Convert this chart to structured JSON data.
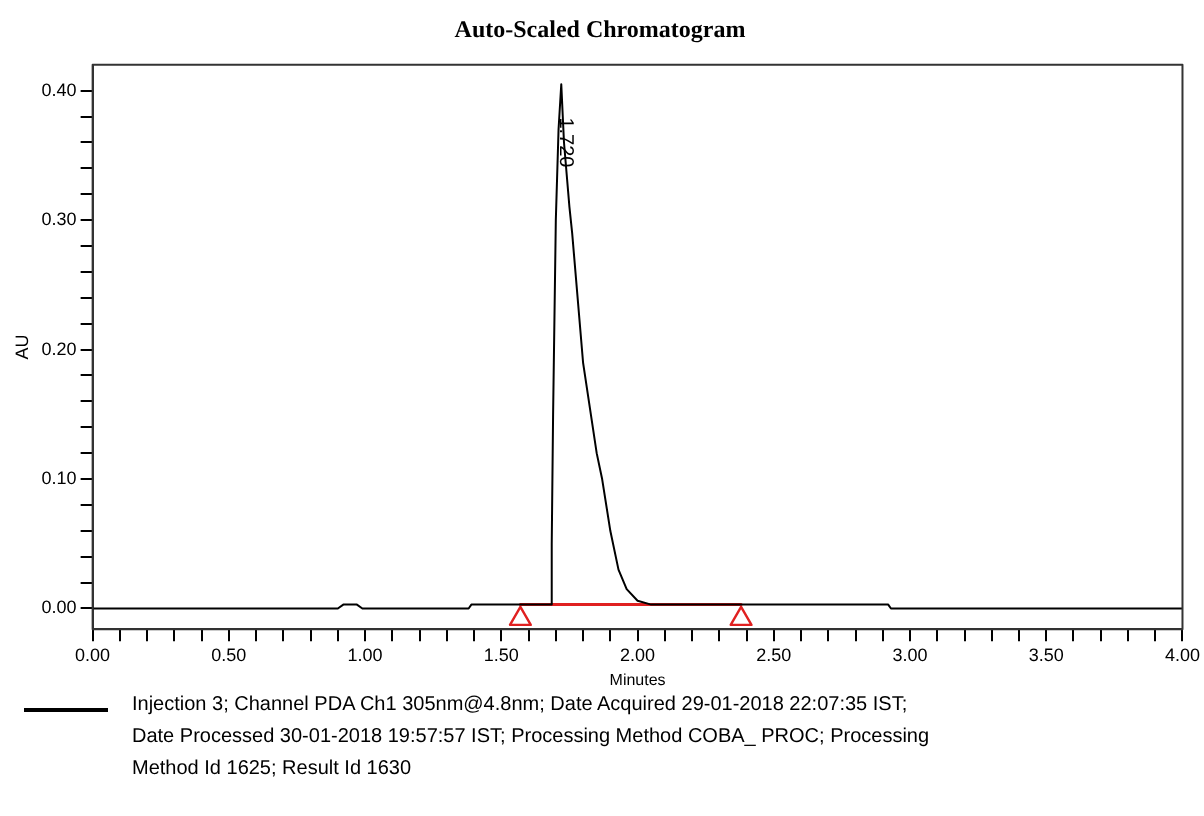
{
  "chart_data": {
    "type": "line",
    "title": "Auto-Scaled Chromatogram",
    "xlabel": "Minutes",
    "ylabel": "AU",
    "xlim": [
      0,
      4
    ],
    "ylim": [
      -0.016,
      0.42
    ],
    "xticks": [
      {
        "value": 0,
        "label": "0.00"
      },
      {
        "value": 0.1,
        "label": null
      },
      {
        "value": 0.2,
        "label": null
      },
      {
        "value": 0.3,
        "label": null
      },
      {
        "value": 0.4,
        "label": null
      },
      {
        "value": 0.5,
        "label": "0.50"
      },
      {
        "value": 0.6,
        "label": null
      },
      {
        "value": 0.7,
        "label": null
      },
      {
        "value": 0.8,
        "label": null
      },
      {
        "value": 0.9,
        "label": null
      },
      {
        "value": 1,
        "label": "1.00"
      },
      {
        "value": 1.1,
        "label": null
      },
      {
        "value": 1.2,
        "label": null
      },
      {
        "value": 1.3,
        "label": null
      },
      {
        "value": 1.4,
        "label": null
      },
      {
        "value": 1.5,
        "label": "1.50"
      },
      {
        "value": 1.6,
        "label": null
      },
      {
        "value": 1.7,
        "label": null
      },
      {
        "value": 1.8,
        "label": null
      },
      {
        "value": 1.9,
        "label": null
      },
      {
        "value": 2,
        "label": "2.00"
      },
      {
        "value": 2.1,
        "label": null
      },
      {
        "value": 2.2,
        "label": null
      },
      {
        "value": 2.3,
        "label": null
      },
      {
        "value": 2.4,
        "label": null
      },
      {
        "value": 2.5,
        "label": "2.50"
      },
      {
        "value": 2.6,
        "label": null
      },
      {
        "value": 2.7,
        "label": null
      },
      {
        "value": 2.8,
        "label": null
      },
      {
        "value": 2.9,
        "label": null
      },
      {
        "value": 3,
        "label": "3.00"
      },
      {
        "value": 3.1,
        "label": null
      },
      {
        "value": 3.2,
        "label": null
      },
      {
        "value": 3.3,
        "label": null
      },
      {
        "value": 3.4,
        "label": null
      },
      {
        "value": 3.5,
        "label": "3.50"
      },
      {
        "value": 3.6,
        "label": null
      },
      {
        "value": 3.7,
        "label": null
      },
      {
        "value": 3.8,
        "label": null
      },
      {
        "value": 3.9,
        "label": null
      },
      {
        "value": 4,
        "label": "4.00"
      }
    ],
    "yticks": [
      {
        "value": 0,
        "label": "0.00"
      },
      {
        "value": 0.02,
        "label": null
      },
      {
        "value": 0.04,
        "label": null
      },
      {
        "value": 0.06,
        "label": null
      },
      {
        "value": 0.08,
        "label": null
      },
      {
        "value": 0.1,
        "label": "0.10"
      },
      {
        "value": 0.12,
        "label": null
      },
      {
        "value": 0.14,
        "label": null
      },
      {
        "value": 0.16,
        "label": null
      },
      {
        "value": 0.18,
        "label": null
      },
      {
        "value": 0.2,
        "label": "0.20"
      },
      {
        "value": 0.22,
        "label": null
      },
      {
        "value": 0.24,
        "label": null
      },
      {
        "value": 0.26,
        "label": null
      },
      {
        "value": 0.28,
        "label": null
      },
      {
        "value": 0.3,
        "label": "0.30"
      },
      {
        "value": 0.32,
        "label": null
      },
      {
        "value": 0.34,
        "label": null
      },
      {
        "value": 0.36,
        "label": null
      },
      {
        "value": 0.38,
        "label": null
      },
      {
        "value": 0.4,
        "label": "0.40"
      }
    ],
    "grid": false,
    "legend": "bottom",
    "marker": "none",
    "series": [
      {
        "name": "Injection 3; Channel PDA Ch1 305nm@4.8nm; Date Acquired 29-01-2018 22:07:35 IST; Date Processed 30-01-2018 19:57:57 IST; Processing Method COBA_ PROC; Processing Method Id 1625; Result Id 1630",
        "color": "#000000",
        "x": [
          0,
          0.9,
          0.92,
          0.97,
          0.99,
          1.38,
          1.39,
          1.68,
          1.685,
          1.69,
          1.7,
          1.71,
          1.72,
          1.73,
          1.75,
          1.76,
          1.8,
          1.85,
          1.87,
          1.9,
          1.93,
          1.96,
          2,
          2.05,
          2.1,
          2.92,
          2.93,
          4
        ],
        "values": [
          0,
          0,
          0.003,
          0.003,
          0,
          0,
          0.003,
          0.003,
          0.05,
          0.15,
          0.3,
          0.37,
          0.405,
          0.36,
          0.31,
          0.29,
          0.19,
          0.12,
          0.1,
          0.06,
          0.03,
          0.015,
          0.006,
          0.003,
          0.003,
          0.003,
          0,
          0
        ]
      },
      {
        "type": "line",
        "color": "#e02020",
        "x": [
          1.57,
          2.38
        ],
        "values": [
          0.003,
          0.003
        ]
      },
      {
        "type": "scatter",
        "marker": "triangle",
        "color": "#e02020",
        "x": [
          1.57,
          2.38
        ],
        "values": [
          -0.008,
          -0.008
        ]
      }
    ],
    "annotations": [
      {
        "text": "1.720",
        "x": 1.72,
        "y": 0.36
      }
    ]
  }
}
